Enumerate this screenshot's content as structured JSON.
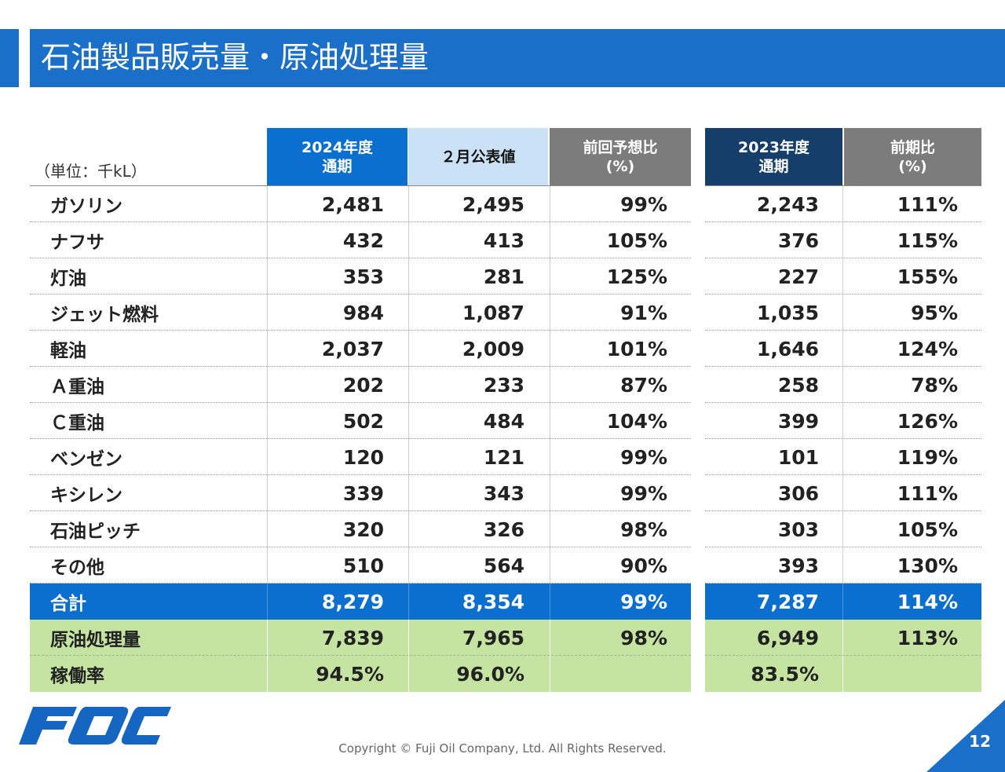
{
  "title": "石油製品販売量・原油処理量",
  "unit_label": "（単位：千kL）",
  "headers": [
    {
      "label": "2024年度\n通期"
    },
    {
      "label": "２月公表値"
    },
    {
      "label": "前回予想比\n(%)"
    },
    {
      "label": "2023年度\n通期"
    },
    {
      "label": "前期比\n(%)"
    }
  ],
  "rows": [
    {
      "label": "ガソリン",
      "v": [
        "2,481",
        "2,495",
        "99%",
        "2,243",
        "111%"
      ]
    },
    {
      "label": "ナフサ",
      "v": [
        "432",
        "413",
        "105%",
        "376",
        "115%"
      ]
    },
    {
      "label": "灯油",
      "v": [
        "353",
        "281",
        "125%",
        "227",
        "155%"
      ]
    },
    {
      "label": "ジェット燃料",
      "v": [
        "984",
        "1,087",
        "91%",
        "1,035",
        "95%"
      ]
    },
    {
      "label": "軽油",
      "v": [
        "2,037",
        "2,009",
        "101%",
        "1,646",
        "124%"
      ]
    },
    {
      "label": "Ａ重油",
      "v": [
        "202",
        "233",
        "87%",
        "258",
        "78%"
      ]
    },
    {
      "label": "Ｃ重油",
      "v": [
        "502",
        "484",
        "104%",
        "399",
        "126%"
      ]
    },
    {
      "label": "ベンゼン",
      "v": [
        "120",
        "121",
        "99%",
        "101",
        "119%"
      ]
    },
    {
      "label": "キシレン",
      "v": [
        "339",
        "343",
        "99%",
        "306",
        "111%"
      ]
    },
    {
      "label": "石油ピッチ",
      "v": [
        "320",
        "326",
        "98%",
        "303",
        "105%"
      ]
    },
    {
      "label": "その他",
      "v": [
        "510",
        "564",
        "90%",
        "393",
        "130%"
      ]
    }
  ],
  "total": {
    "label": "合計",
    "v": [
      "8,279",
      "8,354",
      "99%",
      "7,287",
      "114%"
    ]
  },
  "crude": {
    "label": "原油処理量",
    "v": [
      "7,839",
      "7,965",
      "98%",
      "6,949",
      "113%"
    ]
  },
  "rate": {
    "label": "稼働率",
    "v": [
      "94.5%",
      "96.0%",
      "",
      "83.5%",
      ""
    ]
  },
  "colors": {
    "title_bar": "#1a6fc9",
    "header_2024": "#0a6fcf",
    "header_feb": "#cbe2f6",
    "header_ratio": "#7c7c7c",
    "header_2023": "#163e6b",
    "total_row": "#0a6fcf",
    "green_rows": "#c5e3a1"
  },
  "copyright": "Copyright © Fuji Oil Company, Ltd. All Rights Reserved.",
  "page_number": "12",
  "logo_icon": "foc-logo"
}
